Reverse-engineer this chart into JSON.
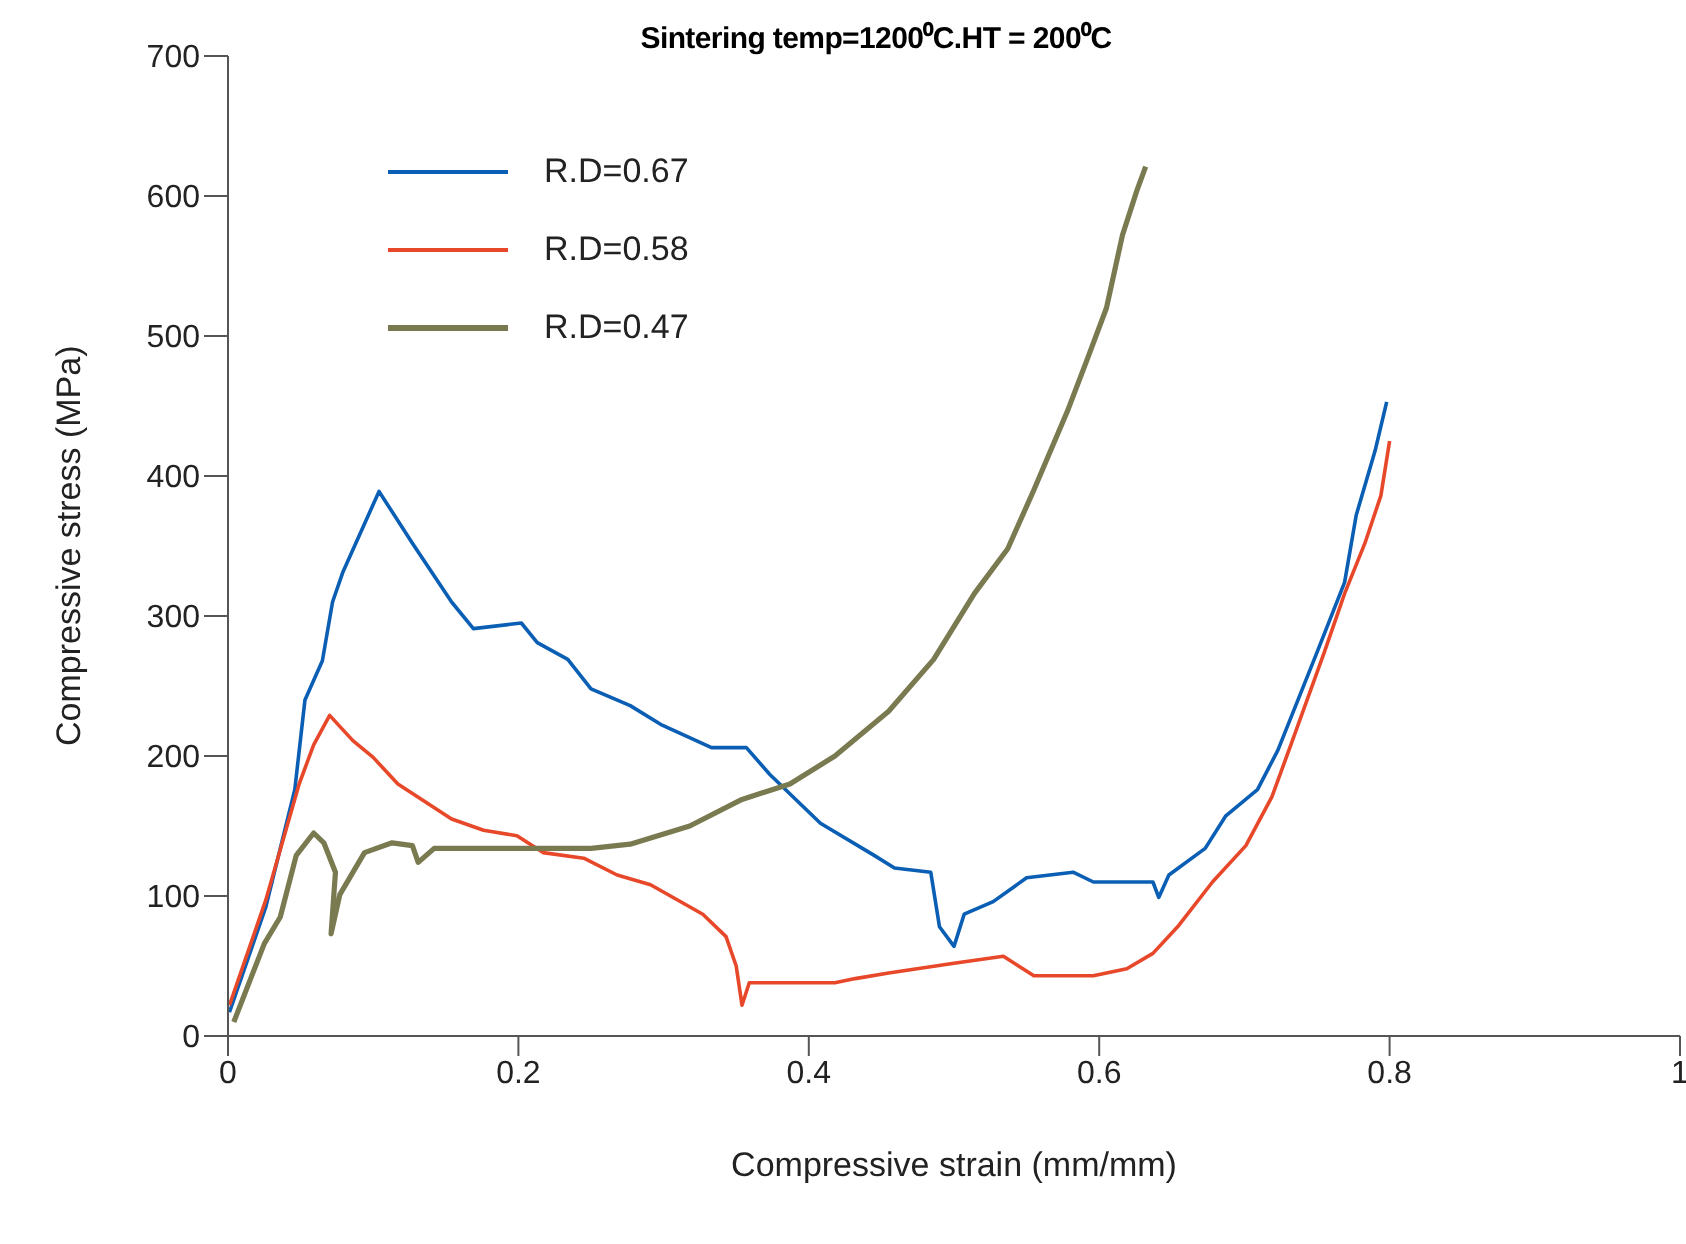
{
  "chart_data": {
    "type": "line",
    "title": "Sintering temp=1200⁰C.HT = 200⁰C",
    "xlabel": "Compressive strain (mm/mm)",
    "ylabel": "Compressive stress (MPa)",
    "xlim": [
      0,
      1
    ],
    "xticks": [
      0,
      0.2,
      0.4,
      0.6,
      0.8,
      1
    ],
    "ylim": [
      0,
      700
    ],
    "yticks": [
      0,
      100,
      200,
      300,
      400,
      500,
      600,
      700
    ],
    "grid": false,
    "legend": "top left",
    "marker": "none",
    "line_style": "solid",
    "series": [
      {
        "name": "R.D=0.67",
        "color": "#0a5fb4",
        "x": [
          0.001,
          0.026,
          0.046,
          0.053,
          0.065,
          0.072,
          0.079,
          0.104,
          0.127,
          0.154,
          0.169,
          0.202,
          0.213,
          0.234,
          0.25,
          0.277,
          0.299,
          0.333,
          0.357,
          0.373,
          0.408,
          0.445,
          0.459,
          0.484,
          0.49,
          0.5,
          0.507,
          0.527,
          0.55,
          0.582,
          0.596,
          0.637,
          0.641,
          0.648,
          0.673,
          0.687,
          0.709,
          0.723,
          0.75,
          0.769,
          0.777,
          0.79,
          0.798
        ],
        "values": [
          17,
          92,
          176,
          240,
          268,
          310,
          331,
          389,
          352,
          310,
          291,
          295,
          281,
          269,
          248,
          236,
          222,
          206,
          206,
          187,
          152,
          129,
          120,
          117,
          78,
          64,
          87,
          96,
          113,
          117,
          110,
          110,
          99,
          115,
          134,
          157,
          176,
          204,
          274,
          324,
          372,
          418,
          453
        ]
      },
      {
        "name": "R.D=0.58",
        "color": "#e8482a",
        "x": [
          0.001,
          0.026,
          0.049,
          0.059,
          0.07,
          0.086,
          0.1,
          0.117,
          0.154,
          0.176,
          0.199,
          0.217,
          0.245,
          0.268,
          0.291,
          0.327,
          0.343,
          0.35,
          0.354,
          0.359,
          0.418,
          0.432,
          0.455,
          0.5,
          0.534,
          0.555,
          0.596,
          0.619,
          0.637,
          0.654,
          0.678,
          0.701,
          0.719,
          0.732,
          0.755,
          0.769,
          0.783,
          0.794,
          0.8
        ],
        "values": [
          22,
          97,
          180,
          208,
          229,
          211,
          199,
          180,
          155,
          147,
          143,
          131,
          127,
          115,
          108,
          87,
          71,
          50,
          22,
          38,
          38,
          41,
          45,
          52,
          57,
          43,
          43,
          48,
          59,
          78,
          110,
          136,
          171,
          208,
          274,
          316,
          352,
          386,
          425
        ]
      },
      {
        "name": "R.D=0.47",
        "color": "#7a7a50",
        "x": [
          0.004,
          0.025,
          0.036,
          0.047,
          0.059,
          0.066,
          0.074,
          0.071,
          0.077,
          0.094,
          0.113,
          0.127,
          0.131,
          0.142,
          0.25,
          0.277,
          0.318,
          0.354,
          0.387,
          0.418,
          0.455,
          0.486,
          0.514,
          0.537,
          0.555,
          0.578,
          0.592,
          0.605,
          0.616,
          0.626,
          0.632
        ],
        "values": [
          10,
          66,
          85,
          129,
          145,
          138,
          117,
          73,
          101,
          131,
          138,
          136,
          124,
          134,
          134,
          137,
          150,
          169,
          180,
          200,
          232,
          269,
          316,
          348,
          390,
          446,
          484,
          520,
          572,
          604,
          621
        ]
      }
    ]
  }
}
